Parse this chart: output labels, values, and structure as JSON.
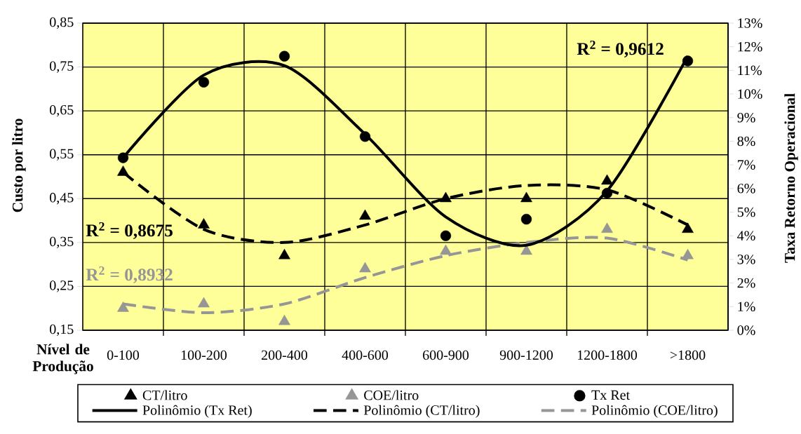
{
  "chart_data": {
    "type": "scatter",
    "xlabel": "Nível de Produção",
    "ylabel": "Custo por litro",
    "y2label": "Taxa Retorno Operacional",
    "categories": [
      "0-100",
      "100-200",
      "200-400",
      "400-600",
      "600-900",
      "900-1200",
      "1200-1800",
      ">1800"
    ],
    "ylim": [
      0.15,
      0.85
    ],
    "yticks": [
      {
        "value": 0.15,
        "label": "0,15"
      },
      {
        "value": 0.25,
        "label": "0,25"
      },
      {
        "value": 0.35,
        "label": "0,35"
      },
      {
        "value": 0.45,
        "label": "0,45"
      },
      {
        "value": 0.55,
        "label": "0,55"
      },
      {
        "value": 0.65,
        "label": "0,65"
      },
      {
        "value": 0.75,
        "label": "0,75"
      },
      {
        "value": 0.85,
        "label": "0,85"
      }
    ],
    "y2lim": [
      0,
      13
    ],
    "y2ticks": [
      {
        "value": 0,
        "label": "0%"
      },
      {
        "value": 1,
        "label": "1%"
      },
      {
        "value": 2,
        "label": "2%"
      },
      {
        "value": 3,
        "label": "3%"
      },
      {
        "value": 4,
        "label": "4%"
      },
      {
        "value": 5,
        "label": "5%"
      },
      {
        "value": 6,
        "label": "6%"
      },
      {
        "value": 7,
        "label": "7%"
      },
      {
        "value": 8,
        "label": "8%"
      },
      {
        "value": 9,
        "label": "9%"
      },
      {
        "value": 10,
        "label": "10%"
      },
      {
        "value": 11,
        "label": "11%"
      },
      {
        "value": 12,
        "label": "12%"
      },
      {
        "value": 13,
        "label": "13%"
      }
    ],
    "grid": true,
    "legend": "bottom",
    "series": [
      {
        "name": "CT/litro",
        "marker": "triangle",
        "color": "#000000",
        "values": [
          0.51,
          0.39,
          0.32,
          0.41,
          0.45,
          0.45,
          0.49,
          0.38
        ]
      },
      {
        "name": "COE/litro",
        "marker": "triangle",
        "color": "#969696",
        "values": [
          0.2,
          0.21,
          0.17,
          0.29,
          0.33,
          0.33,
          0.38,
          0.32
        ]
      },
      {
        "name": "Tx Ret",
        "marker": "circle",
        "color": "#000000",
        "axis": "y2",
        "values": [
          7.3,
          10.5,
          11.6,
          8.2,
          4.0,
          4.7,
          5.8,
          11.4
        ]
      },
      {
        "name": "Polinômio (Tx Ret)",
        "type": "line",
        "line_style": "solid",
        "color": "#000000",
        "axis": "y2",
        "values": [
          7.3,
          10.8,
          11.2,
          8.3,
          4.8,
          3.6,
          5.9,
          11.6
        ]
      },
      {
        "name": "Polinômio (CT/litro)",
        "type": "line",
        "line_style": "dashed",
        "color": "#000000",
        "values": [
          0.51,
          0.38,
          0.35,
          0.39,
          0.45,
          0.48,
          0.47,
          0.39
        ]
      },
      {
        "name": "Polinômio (COE/litro)",
        "type": "line",
        "line_style": "dashed",
        "color": "#969696",
        "values": [
          0.21,
          0.19,
          0.21,
          0.27,
          0.32,
          0.35,
          0.36,
          0.31
        ]
      }
    ],
    "annotations": [
      "R$^{2}$ = 0,8675",
      "R$^{2}$ = 0,8932",
      "R$^{2}$ = 0,9612"
    ]
  }
}
